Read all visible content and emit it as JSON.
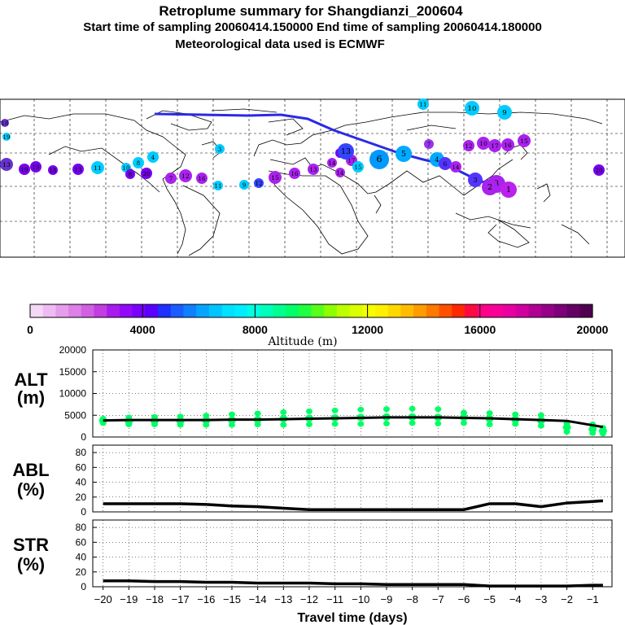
{
  "header": {
    "title": "Retroplume summary for Shangdianzi_200604",
    "sampling": "Start time of sampling 20060414.150000     End time of sampling 20060414.180000",
    "met": "Meteorological data used is ECMWF"
  },
  "colorbar": {
    "xlabel": "Altitude (m)",
    "ticks": [
      "0",
      "4000",
      "8000",
      "12000",
      "16000",
      "20000"
    ],
    "range": [
      0,
      20000
    ],
    "colors": [
      "#f5d8f6",
      "#eebcf2",
      "#e69eec",
      "#dd80e7",
      "#d160e2",
      "#c13ee0",
      "#a91cee",
      "#9109f8",
      "#7a00fc",
      "#5a00ff",
      "#2030ff",
      "#1a5cff",
      "#1080ff",
      "#07a4ff",
      "#00c4ff",
      "#00e0ff",
      "#00ecff",
      "#00ffe0",
      "#00ffb8",
      "#00ff90",
      "#00ff68",
      "#20ff40",
      "#58ff18",
      "#8cff00",
      "#bcff00",
      "#dcff00",
      "#f6ff00",
      "#fff000",
      "#ffd800",
      "#ffbc00",
      "#ff9c00",
      "#ff7800",
      "#ff5000",
      "#ff2800",
      "#ff0a40",
      "#ff0088",
      "#f80098",
      "#e800a0",
      "#d000a0",
      "#b00094",
      "#960088",
      "#7c0078",
      "#640064",
      "#500050"
    ]
  },
  "map": {
    "labels": [
      "18",
      "19",
      "13",
      "19",
      "19",
      "18",
      "13",
      "11",
      "10",
      "8",
      "4",
      "20",
      "8",
      "7",
      "12",
      "16",
      "11",
      "9",
      "12",
      "15",
      "16",
      "13",
      "14",
      "17",
      "14",
      "8",
      "13",
      "15",
      "6",
      "5",
      "4",
      "3",
      "6",
      "14",
      "7",
      "9",
      "10",
      "11",
      "12",
      "10",
      "17",
      "16",
      "15",
      "3",
      "1",
      "2",
      "20",
      "3"
    ],
    "label_colors": [
      "#6633cc",
      "#00ccff",
      "#6633cc",
      "#7700ee",
      "#7700ee",
      "#7700ee",
      "#7700ee",
      "#00ccff",
      "#00ccff",
      "#00ccff",
      "#00ccff",
      "#7700ee",
      "#7700ee",
      "#aa22ee",
      "#aa22ee",
      "#aa22ee",
      "#00ccff",
      "#00ccff",
      "#3344ff",
      "#aa22ee",
      "#aa22ee",
      "#aa22ee",
      "#aa22ee",
      "#aa22ee",
      "#aa22ee",
      "#7700ee",
      "#3344ff",
      "#00ccff",
      "#0099ff",
      "#00aaff",
      "#00aaff",
      "#00ccff",
      "#5533ff",
      "#aa22ee",
      "#9933ee",
      "#00ccff",
      "#00ccff",
      "#00ccff",
      "#aa22ee",
      "#aa22ee",
      "#aa22ee",
      "#aa22ee",
      "#aa22ee",
      "#aa22ee",
      "#bb22ee",
      "#aa22ee",
      "#7700ee",
      "#5533ff"
    ]
  },
  "chart_data": [
    {
      "type": "scatter",
      "panel": "ALT",
      "title": "",
      "ylabel": "ALT\n(m)",
      "ylabel_line1": "ALT",
      "ylabel_line2": "(m)",
      "ylim": [
        0,
        20000
      ],
      "yticks": [
        "0",
        "5000",
        "10000",
        "15000",
        "20000"
      ],
      "x": [
        -20,
        -19,
        -18,
        -17,
        -16,
        -15,
        -14,
        -13,
        -12,
        -11,
        -10,
        -9,
        -8,
        -7,
        -6,
        -5,
        -4,
        -3,
        -2,
        -1,
        -0.6
      ],
      "mean_altitude": [
        3800,
        3900,
        3900,
        3900,
        3900,
        4000,
        4000,
        4100,
        4200,
        4300,
        4400,
        4500,
        4500,
        4500,
        4400,
        4300,
        4100,
        3900,
        3700,
        2700,
        2300
      ],
      "cloud_points": [
        {
          "x": -20,
          "y": [
            3200,
            3800,
            4200
          ]
        },
        {
          "x": -19,
          "y": [
            2900,
            3600,
            4500
          ]
        },
        {
          "x": -18,
          "y": [
            2900,
            3700,
            4600
          ]
        },
        {
          "x": -17,
          "y": [
            2800,
            3700,
            4700
          ]
        },
        {
          "x": -16,
          "y": [
            2800,
            3800,
            4900
          ]
        },
        {
          "x": -15,
          "y": [
            2800,
            3900,
            5200
          ]
        },
        {
          "x": -14,
          "y": [
            2900,
            4000,
            5400
          ]
        },
        {
          "x": -13,
          "y": [
            2800,
            4200,
            5700
          ]
        },
        {
          "x": -12,
          "y": [
            2900,
            4300,
            5900
          ]
        },
        {
          "x": -11,
          "y": [
            3000,
            4400,
            6100
          ]
        },
        {
          "x": -10,
          "y": [
            3000,
            4500,
            6300
          ]
        },
        {
          "x": -9,
          "y": [
            3100,
            4600,
            6400
          ]
        },
        {
          "x": -8,
          "y": [
            3200,
            4600,
            6500
          ]
        },
        {
          "x": -7,
          "y": [
            3100,
            4500,
            6400
          ]
        },
        {
          "x": -6,
          "y": [
            3200,
            4500,
            5600
          ]
        },
        {
          "x": -5,
          "y": [
            2900,
            4200,
            5500
          ]
        },
        {
          "x": -4,
          "y": [
            3000,
            4000,
            5200
          ]
        },
        {
          "x": -3,
          "y": [
            2600,
            3800,
            5000
          ]
        },
        {
          "x": -2,
          "y": [
            1200,
            2200,
            3100
          ]
        },
        {
          "x": -1,
          "y": [
            900,
            1800,
            2900
          ]
        },
        {
          "x": -0.6,
          "y": [
            800,
            1400,
            2100
          ]
        }
      ],
      "color": "#00ff66"
    },
    {
      "type": "line",
      "panel": "ABL",
      "ylabel": "ABL\n(%)",
      "ylabel_line1": "ABL",
      "ylabel_line2": "(%)",
      "ylim": [
        0,
        90
      ],
      "yticks": [
        "0",
        "20",
        "40",
        "60",
        "80"
      ],
      "x": [
        -20,
        -19,
        -18,
        -17,
        -16,
        -15,
        -14,
        -13,
        -12,
        -11,
        -10,
        -9,
        -8,
        -7,
        -6,
        -5,
        -4,
        -3,
        -2,
        -1,
        -0.6
      ],
      "values": [
        11,
        11,
        11,
        11,
        10,
        8,
        7,
        5,
        3,
        3,
        3,
        3,
        3,
        3,
        3,
        11,
        11,
        7,
        12,
        14,
        15
      ]
    },
    {
      "type": "line",
      "panel": "STR",
      "ylabel": "STR\n(%)",
      "ylabel_line1": "STR",
      "ylabel_line2": "(%)",
      "ylim": [
        0,
        90
      ],
      "yticks": [
        "0",
        "20",
        "40",
        "60",
        "80"
      ],
      "xlabel": "Travel time (days)",
      "xticks": [
        "−20",
        "−19",
        "−18",
        "−17",
        "−16",
        "−15",
        "−14",
        "−13",
        "−12",
        "−11",
        "−10",
        "−9",
        "−8",
        "−7",
        "−6",
        "−5",
        "−4",
        "−3",
        "−2",
        "−1"
      ],
      "x": [
        -20,
        -19,
        -18,
        -17,
        -16,
        -15,
        -14,
        -13,
        -12,
        -11,
        -10,
        -9,
        -8,
        -7,
        -6,
        -5,
        -4,
        -3,
        -2,
        -1,
        -0.6
      ],
      "values": [
        8,
        8,
        7,
        7,
        6,
        6,
        5,
        5,
        5,
        4,
        4,
        3,
        3,
        3,
        3,
        1,
        1,
        1,
        1,
        2,
        2
      ]
    }
  ]
}
